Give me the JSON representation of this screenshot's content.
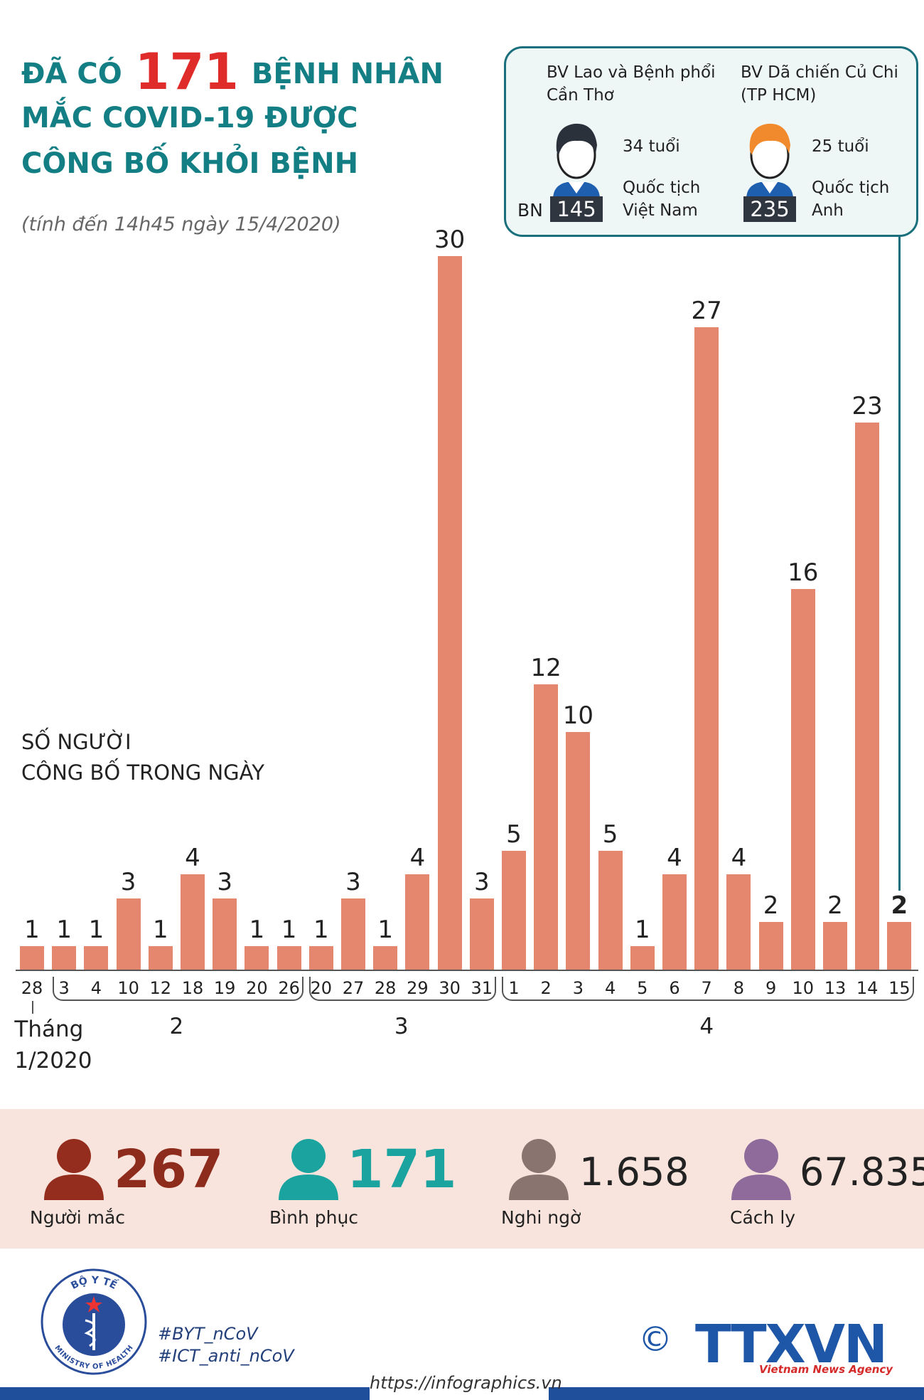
{
  "chart_data": {
    "type": "bar",
    "title": {
      "lead": "ĐÃ CÓ",
      "number": "171",
      "rest": [
        "BỆNH NHÂN",
        "MẮC COVID-19 ĐƯỢC",
        "CÔNG BỐ KHỎI BỆNH"
      ]
    },
    "subtitle": "(tính đến 14h45 ngày 15/4/2020)",
    "y_label": [
      "SỐ NGƯỜI",
      "CÔNG BỐ TRONG NGÀY"
    ],
    "color": "#e5866f",
    "groups": [
      {
        "label": [
          "Tháng",
          "1/2020"
        ],
        "categories": [
          "28"
        ],
        "values": [
          1
        ]
      },
      {
        "label": [
          "2"
        ],
        "categories": [
          "3",
          "4",
          "10",
          "12",
          "18",
          "19",
          "20",
          "26"
        ],
        "values": [
          1,
          1,
          3,
          1,
          4,
          3,
          1,
          1
        ]
      },
      {
        "label": [
          "3"
        ],
        "categories": [
          "20",
          "27",
          "28",
          "29",
          "30",
          "31"
        ],
        "values": [
          1,
          3,
          1,
          4,
          30,
          3
        ]
      },
      {
        "label": [
          "4"
        ],
        "categories": [
          "1",
          "2",
          "3",
          "4",
          "5",
          "6",
          "7",
          "8",
          "9",
          "10",
          "13",
          "14",
          "15"
        ],
        "values": [
          5,
          12,
          10,
          5,
          1,
          4,
          27,
          4,
          2,
          16,
          2,
          23,
          2
        ]
      }
    ]
  },
  "callout": {
    "id_prefix": "BN",
    "patients": [
      {
        "hospital": [
          "BV Lao và Bệnh phổi",
          "Cần Thơ"
        ],
        "age": "34 tuổi",
        "nationality": [
          "Quốc tịch",
          "Việt Nam"
        ],
        "id": "145"
      },
      {
        "hospital": [
          "BV Dã chiến Củ Chi",
          "(TP HCM)"
        ],
        "age": "25 tuổi",
        "nationality": [
          "Quốc tịch",
          "Anh"
        ],
        "id": "235"
      }
    ]
  },
  "stats": [
    {
      "value": "267",
      "label": "Người mắc"
    },
    {
      "value": "171",
      "label": "Bình phục"
    },
    {
      "value": "1.658",
      "label": "Nghi ngờ"
    },
    {
      "value": "67.835",
      "label": "Cách ly"
    }
  ],
  "footer": {
    "logo_top": "BỘ Y TẾ",
    "logo_bottom": "MINISTRY OF HEALTH",
    "hashtags": [
      "#BYT_nCoV",
      "#ICT_anti_nCoV"
    ],
    "copyright": "©",
    "brand": "TTXVN",
    "brand_sub": "Vietnam News Agency",
    "url": "https://infographics.vn"
  }
}
